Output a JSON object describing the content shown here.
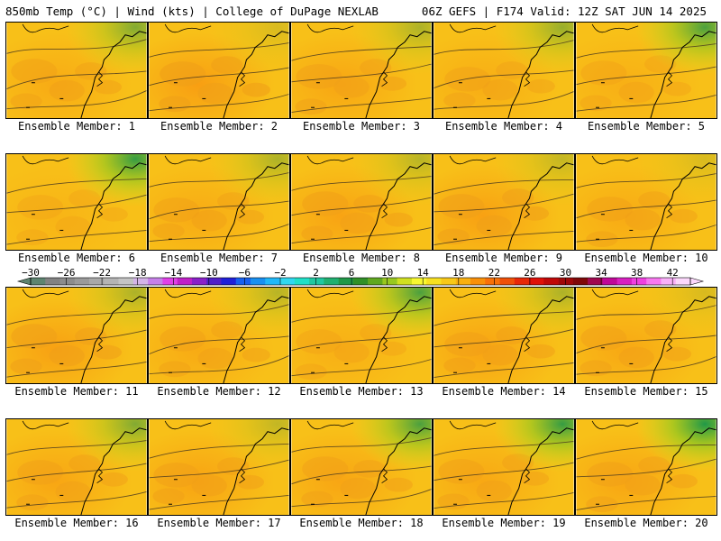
{
  "header": {
    "title_left": "850mb Temp (°C) | Wind (kts) | College of DuPage NEXLAB",
    "title_right": "06Z GEFS | F174 Valid: 12Z SAT JUN 14 2025"
  },
  "panels": [
    {
      "label": "Ensemble Member: 1",
      "warm": 0.45,
      "cool_ne": 0.55
    },
    {
      "label": "Ensemble Member: 2",
      "warm": 0.7,
      "cool_ne": 0.15
    },
    {
      "label": "Ensemble Member: 3",
      "warm": 0.55,
      "cool_ne": 0.35
    },
    {
      "label": "Ensemble Member: 4",
      "warm": 0.4,
      "cool_ne": 0.45
    },
    {
      "label": "Ensemble Member: 5",
      "warm": 0.35,
      "cool_ne": 0.8
    },
    {
      "label": "Ensemble Member: 6",
      "warm": 0.25,
      "cool_ne": 0.9
    },
    {
      "label": "Ensemble Member: 7",
      "warm": 0.45,
      "cool_ne": 0.35
    },
    {
      "label": "Ensemble Member: 8",
      "warm": 0.6,
      "cool_ne": 0.3
    },
    {
      "label": "Ensemble Member: 9",
      "warm": 0.65,
      "cool_ne": 0.25
    },
    {
      "label": "Ensemble Member: 10",
      "warm": 0.45,
      "cool_ne": 0.15
    },
    {
      "label": "Ensemble Member: 11",
      "warm": 0.65,
      "cool_ne": 0.35
    },
    {
      "label": "Ensemble Member: 12",
      "warm": 0.45,
      "cool_ne": 0.3
    },
    {
      "label": "Ensemble Member: 13",
      "warm": 0.35,
      "cool_ne": 0.8
    },
    {
      "label": "Ensemble Member: 14",
      "warm": 0.6,
      "cool_ne": 0.35
    },
    {
      "label": "Ensemble Member: 15",
      "warm": 0.5,
      "cool_ne": 0.15
    },
    {
      "label": "Ensemble Member: 16",
      "warm": 0.55,
      "cool_ne": 0.55
    },
    {
      "label": "Ensemble Member: 17",
      "warm": 0.6,
      "cool_ne": 0.25
    },
    {
      "label": "Ensemble Member: 18",
      "warm": 0.55,
      "cool_ne": 0.8
    },
    {
      "label": "Ensemble Member: 19",
      "warm": 0.5,
      "cool_ne": 0.9
    },
    {
      "label": "Ensemble Member: 20",
      "warm": 0.55,
      "cool_ne": 1.0
    }
  ],
  "colorbar": {
    "ticks": [
      "−30",
      "−26",
      "−22",
      "−18",
      "−14",
      "−10",
      "−6",
      "−2",
      "2",
      "6",
      "10",
      "14",
      "18",
      "22",
      "26",
      "30",
      "34",
      "38",
      "42"
    ],
    "colors": [
      "#5e8470",
      "#828282",
      "#8c8c8c",
      "#9a9a9a",
      "#a8a8a8",
      "#b4b4b4",
      "#c4c4c4",
      "#d4b4e8",
      "#c680e8",
      "#e040e8",
      "#c020c8",
      "#8a20c8",
      "#5020c8",
      "#2020d8",
      "#1860f0",
      "#1890f0",
      "#20b8f8",
      "#30d8f0",
      "#20e0c8",
      "#20c8a0",
      "#20b070",
      "#209848",
      "#309028",
      "#60a820",
      "#98c820",
      "#d0e020",
      "#f8f830",
      "#f8e020",
      "#f8c818",
      "#f8b010",
      "#f89008",
      "#f87008",
      "#f05008",
      "#e82808",
      "#e01008",
      "#c00808",
      "#a00808",
      "#800808",
      "#a00850",
      "#c00898",
      "#d820c0",
      "#f040e0",
      "#f878f0",
      "#f8b0f8",
      "#fcd8fc"
    ]
  }
}
